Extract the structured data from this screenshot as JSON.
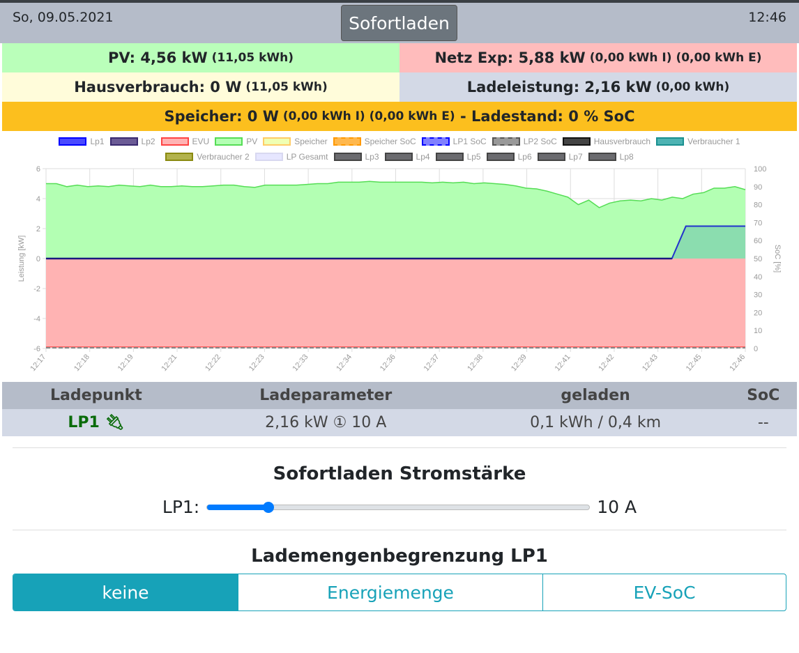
{
  "header": {
    "date": "So, 09.05.2021",
    "mode": "Sofortladen",
    "time": "12:46"
  },
  "stats": {
    "pv": {
      "label": "PV: 4,56 kW",
      "sub": "(11,05 kWh)"
    },
    "netz": {
      "label": "Netz Exp: 5,88 kW",
      "sub": "(0,00 kWh I) (0,00 kWh E)"
    },
    "haus": {
      "label": "Hausverbrauch: 0 W",
      "sub": "(11,05 kWh)"
    },
    "lade": {
      "label": "Ladeleistung: 2,16 kW",
      "sub": "(0,00 kWh)"
    },
    "speicher": {
      "label": "Speicher: 0 W",
      "sub": "(0,00 kWh I) (0,00 kWh E)",
      "label2": "- Ladestand: 0 % SoC"
    }
  },
  "chart_data": {
    "type": "area",
    "legend": [
      {
        "name": "Lp1",
        "color": "#0000ff",
        "fill": "#4a4aff"
      },
      {
        "name": "Lp2",
        "color": "#3a2a70",
        "fill": "#6b5b95"
      },
      {
        "name": "EVU",
        "color": "#ff4444",
        "fill": "#ffb3b3"
      },
      {
        "name": "PV",
        "color": "#55dd55",
        "fill": "#b3ffb3"
      },
      {
        "name": "Speicher",
        "color": "#ffcc66",
        "fill": "#f0ffb3"
      },
      {
        "name": "Speicher SoC",
        "color": "#ff9900",
        "fill": "#ffb84d",
        "dash": true
      },
      {
        "name": "LP1 SoC",
        "color": "#0000ff",
        "fill": "#7f7fff",
        "dash": true
      },
      {
        "name": "LP2 SoC",
        "color": "#555555",
        "fill": "#999999",
        "dash": true
      },
      {
        "name": "Hausverbrauch",
        "color": "#111111",
        "fill": "#444444"
      },
      {
        "name": "Verbraucher 1",
        "color": "#1a9090",
        "fill": "#4db3b3"
      },
      {
        "name": "Verbraucher 2",
        "color": "#8a8a10",
        "fill": "#b3b34d"
      },
      {
        "name": "LP Gesamt",
        "color": "#d8d8f0",
        "fill": "#e6e6ff"
      },
      {
        "name": "Lp3",
        "color": "#444",
        "fill": "#6b6b6f"
      },
      {
        "name": "Lp4",
        "color": "#444",
        "fill": "#6b6b6f"
      },
      {
        "name": "Lp5",
        "color": "#444",
        "fill": "#6b6b6f"
      },
      {
        "name": "Lp6",
        "color": "#444",
        "fill": "#6b6b6f"
      },
      {
        "name": "Lp7",
        "color": "#444",
        "fill": "#6b6b6f"
      },
      {
        "name": "Lp8",
        "color": "#444",
        "fill": "#6b6b6f"
      }
    ],
    "ylabel": "Leistung [kW]",
    "y2label": "SoC [%]",
    "ylim": [
      -6,
      6
    ],
    "y2lim": [
      0,
      100
    ],
    "yticks": [
      "6",
      "4",
      "2",
      "0",
      "-2",
      "-4",
      "-6"
    ],
    "y2ticks": [
      "100",
      "90",
      "80",
      "70",
      "60",
      "50",
      "40",
      "30",
      "20",
      "10",
      "0"
    ],
    "xticks": [
      "12:17",
      "12:18",
      "12:19",
      "12:21",
      "12:22",
      "12:23",
      "12:33",
      "12:34",
      "12:36",
      "12:37",
      "12:38",
      "12:39",
      "12:41",
      "12:42",
      "12:43",
      "12:45",
      "12:46"
    ],
    "pv": [
      5.0,
      5.0,
      4.8,
      4.9,
      4.8,
      4.85,
      4.8,
      4.9,
      4.85,
      4.8,
      4.9,
      4.8,
      4.8,
      4.85,
      4.8,
      4.8,
      4.85,
      4.9,
      4.9,
      4.8,
      4.75,
      4.9,
      4.9,
      4.9,
      4.9,
      4.95,
      5.0,
      5.0,
      5.1,
      5.1,
      5.1,
      5.15,
      5.1,
      5.1,
      5.1,
      5.1,
      5.1,
      5.05,
      5.1,
      5.05,
      5.1,
      5.0,
      5.05,
      5.0,
      4.95,
      4.85,
      4.7,
      4.65,
      4.5,
      4.3,
      4.1,
      3.6,
      3.9,
      3.4,
      3.7,
      3.85,
      3.9,
      3.85,
      4.0,
      3.9,
      4.1,
      4.0,
      4.3,
      4.4,
      4.7,
      4.7,
      4.8,
      4.6
    ],
    "evu": -5.9,
    "lp1": {
      "start_fraction": 0.895,
      "ramp_fraction": 0.915,
      "value": 2.16
    }
  },
  "table": {
    "headers": [
      "Ladepunkt",
      "Ladeparameter",
      "geladen",
      "SoC"
    ],
    "row": {
      "lp": "LP1",
      "param": "2,16 kW ① 10 A",
      "geladen": "0,1 kWh / 0,4 km",
      "soc": "--"
    }
  },
  "sofort": {
    "title": "Sofortladen Stromstärke",
    "label": "LP1:",
    "value": "10 A",
    "fraction": 0.16
  },
  "limit": {
    "title": "Lademengenbegrenzung LP1",
    "options": [
      "keine",
      "Energiemenge",
      "EV-SoC"
    ]
  }
}
